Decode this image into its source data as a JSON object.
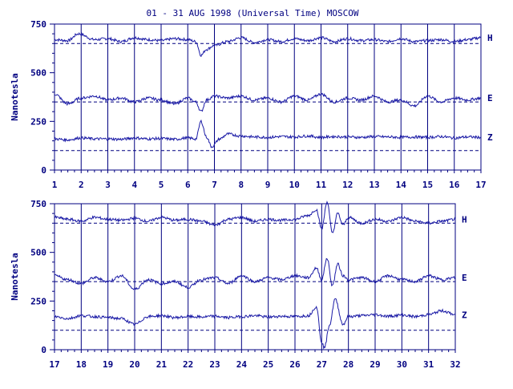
{
  "title": "01 - 31 AUG 1998 (Universal Time) MOSCOW",
  "colors": {
    "ink": "#000080",
    "trace": "#1a1aa6",
    "background": "#ffffff"
  },
  "chart_data": [
    {
      "type": "line",
      "panel": "top",
      "ylabel": "Nanotesla",
      "ylim": [
        0,
        750
      ],
      "yticks": [
        "0",
        "250",
        "500",
        "750"
      ],
      "xlim": [
        1,
        17
      ],
      "xticks": [
        "1",
        "2",
        "3",
        "4",
        "5",
        "6",
        "7",
        "8",
        "9",
        "10",
        "11",
        "12",
        "13",
        "14",
        "15",
        "16",
        "17"
      ],
      "baselines": [
        {
          "name": "H",
          "value": 650
        },
        {
          "name": "E",
          "value": 350
        },
        {
          "name": "Z",
          "value": 100
        }
      ],
      "grid": "vertical lines at each day",
      "series": [
        {
          "name": "H",
          "x": [
            1,
            1.5,
            1.9,
            2.5,
            3,
            3.5,
            4,
            4.5,
            5,
            5.5,
            6,
            6.3,
            6.5,
            6.7,
            7,
            7.5,
            8,
            8.5,
            9,
            9.5,
            10,
            10.5,
            11,
            11.5,
            12,
            12.5,
            13,
            13.5,
            14,
            14.5,
            15,
            15.5,
            16,
            16.5,
            17
          ],
          "values": [
            670,
            665,
            700,
            670,
            675,
            660,
            680,
            670,
            665,
            675,
            670,
            660,
            590,
            620,
            640,
            660,
            680,
            655,
            670,
            660,
            675,
            665,
            680,
            660,
            675,
            665,
            670,
            660,
            675,
            660,
            665,
            670,
            660,
            670,
            680
          ]
        },
        {
          "name": "E",
          "x": [
            1,
            1.5,
            2,
            2.5,
            3,
            3.5,
            4,
            4.5,
            5,
            5.5,
            6,
            6.3,
            6.5,
            6.7,
            7,
            7.5,
            8,
            8.5,
            9,
            9.5,
            10,
            10.5,
            11,
            11.5,
            12,
            12.5,
            13,
            13.5,
            14,
            14.5,
            15,
            15.5,
            16,
            16.5,
            17
          ],
          "values": [
            390,
            340,
            370,
            380,
            360,
            370,
            350,
            370,
            360,
            340,
            370,
            350,
            300,
            360,
            380,
            370,
            380,
            360,
            370,
            350,
            380,
            360,
            390,
            350,
            370,
            360,
            380,
            350,
            360,
            330,
            380,
            350,
            370,
            360,
            370
          ]
        },
        {
          "name": "Z",
          "x": [
            1,
            1.5,
            2,
            2.5,
            3,
            3.5,
            4,
            4.5,
            5,
            5.5,
            6,
            6.3,
            6.5,
            6.7,
            6.9,
            7.2,
            7.5,
            8,
            8.5,
            9,
            9.5,
            10,
            10.5,
            11,
            11.5,
            12,
            12.5,
            13,
            13.5,
            14,
            14.5,
            15,
            15.5,
            16,
            16.5,
            17
          ],
          "values": [
            160,
            155,
            165,
            160,
            160,
            158,
            165,
            160,
            162,
            158,
            165,
            160,
            250,
            170,
            120,
            160,
            185,
            175,
            170,
            168,
            172,
            170,
            175,
            168,
            172,
            170,
            168,
            172,
            170,
            168,
            170,
            168,
            172,
            165,
            170,
            168
          ]
        }
      ]
    },
    {
      "type": "line",
      "panel": "bottom",
      "ylabel": "Nanotesla",
      "ylim": [
        0,
        750
      ],
      "yticks": [
        "0",
        "250",
        "500",
        "750"
      ],
      "xlim": [
        17,
        32
      ],
      "xticks": [
        "17",
        "18",
        "19",
        "20",
        "21",
        "22",
        "23",
        "24",
        "25",
        "26",
        "27",
        "28",
        "29",
        "30",
        "31",
        "32"
      ],
      "baselines": [
        {
          "name": "H",
          "value": 650
        },
        {
          "name": "E",
          "value": 350
        },
        {
          "name": "Z",
          "value": 100
        }
      ],
      "grid": "vertical lines at each day",
      "series": [
        {
          "name": "H",
          "x": [
            17,
            17.5,
            18,
            18.5,
            19,
            19.5,
            20,
            20.5,
            21,
            21.5,
            22,
            22.5,
            23,
            23.5,
            24,
            24.5,
            25,
            25.5,
            26,
            26.5,
            26.8,
            27,
            27.2,
            27.4,
            27.6,
            27.8,
            28,
            28.5,
            29,
            29.5,
            30,
            30.5,
            31,
            31.5,
            32
          ],
          "values": [
            680,
            670,
            660,
            680,
            670,
            665,
            675,
            660,
            680,
            665,
            670,
            660,
            640,
            670,
            680,
            660,
            670,
            665,
            670,
            690,
            720,
            620,
            760,
            600,
            700,
            640,
            680,
            650,
            670,
            660,
            680,
            660,
            650,
            660,
            670
          ]
        },
        {
          "name": "E",
          "x": [
            17,
            17.5,
            18,
            18.5,
            19,
            19.5,
            20,
            20.5,
            21,
            21.5,
            22,
            22.5,
            23,
            23.5,
            24,
            24.5,
            25,
            25.5,
            26,
            26.5,
            26.8,
            27,
            27.2,
            27.4,
            27.6,
            27.8,
            28,
            28.5,
            29,
            29.5,
            30,
            30.5,
            31,
            31.5,
            32
          ],
          "values": [
            380,
            360,
            340,
            370,
            350,
            380,
            310,
            360,
            340,
            350,
            320,
            360,
            370,
            340,
            380,
            350,
            370,
            360,
            380,
            370,
            420,
            360,
            470,
            330,
            440,
            380,
            360,
            370,
            350,
            380,
            360,
            350,
            380,
            360,
            370
          ]
        },
        {
          "name": "Z",
          "x": [
            17,
            17.5,
            18,
            18.5,
            19,
            19.5,
            20,
            20.5,
            21,
            21.5,
            22,
            22.5,
            23,
            23.5,
            24,
            24.5,
            25,
            25.5,
            26,
            26.5,
            26.8,
            27,
            27.1,
            27.3,
            27.5,
            27.8,
            28,
            28.5,
            29,
            29.5,
            30,
            30.5,
            31,
            31.5,
            32
          ],
          "values": [
            170,
            160,
            175,
            170,
            165,
            160,
            130,
            170,
            175,
            165,
            170,
            168,
            172,
            165,
            170,
            175,
            168,
            172,
            170,
            175,
            220,
            40,
            10,
            130,
            260,
            130,
            170,
            175,
            180,
            172,
            178,
            170,
            180,
            200,
            180
          ]
        }
      ]
    }
  ]
}
